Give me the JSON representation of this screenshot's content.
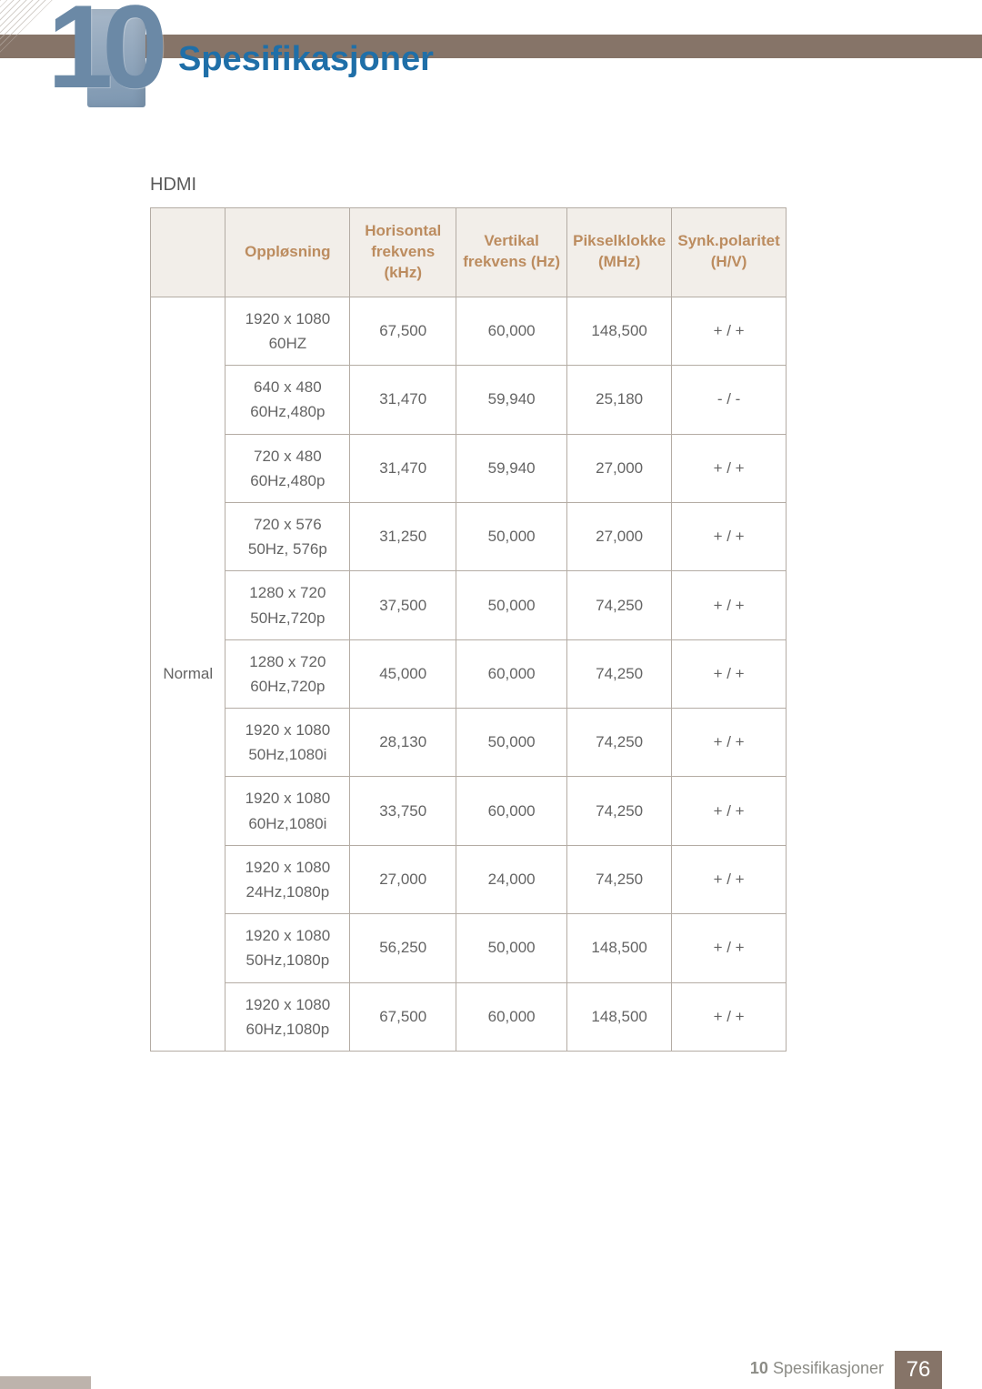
{
  "chapter": {
    "number": "10",
    "title": "Spesifikasjoner"
  },
  "section": {
    "label": "HDMI"
  },
  "colors": {
    "top_bar": "#867468",
    "badge_gradient_from": "#a7b7c8",
    "badge_gradient_to": "#7c96b0",
    "chapter_number": "#6b89a6",
    "chapter_title": "#1f6fa8",
    "th_bg": "#f2eee9",
    "th_text": "#bc8c5f",
    "border": "#b4aca4",
    "body_text": "#646464",
    "footer_text": "#8c8c86"
  },
  "table": {
    "headers": {
      "category": "",
      "resolution": "Oppløsning",
      "hfreq": "Horisontal frekvens (kHz)",
      "vfreq": "Vertikal frekvens (Hz)",
      "pixelclock": "Pikselklokke (MHz)",
      "polarity": "Synk.polaritet (H/V)"
    },
    "category_label": "Normal",
    "rows": [
      {
        "res1": "1920 x 1080",
        "res2": "60HZ",
        "h": "67,500",
        "v": "60,000",
        "p": "148,500",
        "s": "+ / +"
      },
      {
        "res1": "640 x 480",
        "res2": "60Hz,480p",
        "h": "31,470",
        "v": "59,940",
        "p": "25,180",
        "s": "- / -"
      },
      {
        "res1": "720 x 480",
        "res2": "60Hz,480p",
        "h": "31,470",
        "v": "59,940",
        "p": "27,000",
        "s": "+ / +"
      },
      {
        "res1": "720 x 576",
        "res2": "50Hz, 576p",
        "h": "31,250",
        "v": "50,000",
        "p": "27,000",
        "s": "+ / +"
      },
      {
        "res1": "1280 x 720",
        "res2": "50Hz,720p",
        "h": "37,500",
        "v": "50,000",
        "p": "74,250",
        "s": "+ / +"
      },
      {
        "res1": "1280 x 720",
        "res2": "60Hz,720p",
        "h": "45,000",
        "v": "60,000",
        "p": "74,250",
        "s": "+ / +"
      },
      {
        "res1": "1920 x 1080",
        "res2": "50Hz,1080i",
        "h": "28,130",
        "v": "50,000",
        "p": "74,250",
        "s": "+ / +"
      },
      {
        "res1": "1920 x 1080",
        "res2": "60Hz,1080i",
        "h": "33,750",
        "v": "60,000",
        "p": "74,250",
        "s": "+ / +"
      },
      {
        "res1": "1920 x 1080",
        "res2": "24Hz,1080p",
        "h": "27,000",
        "v": "24,000",
        "p": "74,250",
        "s": "+ / +"
      },
      {
        "res1": "1920 x 1080",
        "res2": "50Hz,1080p",
        "h": "56,250",
        "v": "50,000",
        "p": "148,500",
        "s": "+ / +"
      },
      {
        "res1": "1920 x 1080",
        "res2": "60Hz,1080p",
        "h": "67,500",
        "v": "60,000",
        "p": "148,500",
        "s": "+ / +"
      }
    ]
  },
  "footer": {
    "chapter_ref_num": "10",
    "chapter_ref_title": "Spesifikasjoner",
    "page": "76"
  }
}
